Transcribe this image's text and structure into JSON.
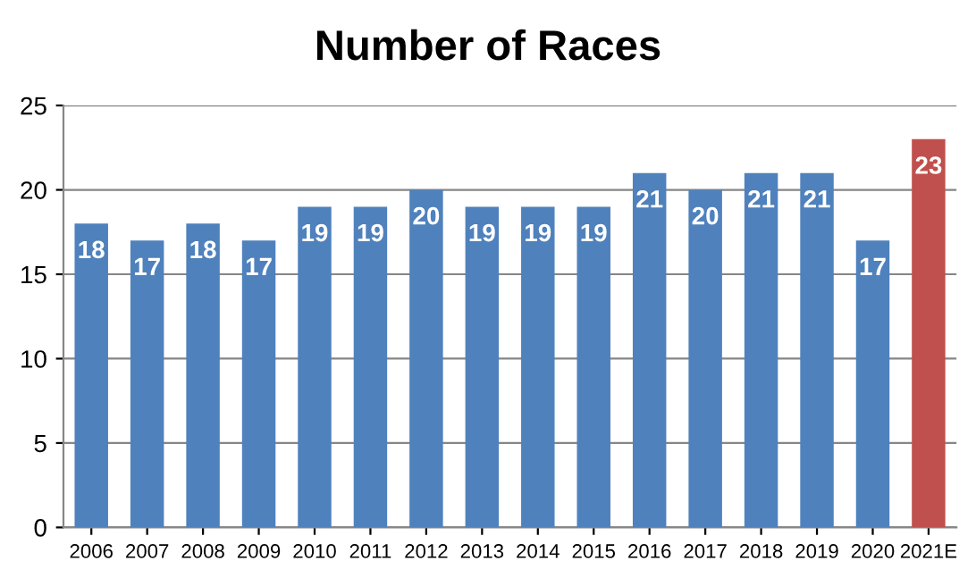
{
  "chart_data": {
    "type": "bar",
    "title": "Number of Races",
    "categories": [
      "2006",
      "2007",
      "2008",
      "2009",
      "2010",
      "2011",
      "2012",
      "2013",
      "2014",
      "2015",
      "2016",
      "2017",
      "2018",
      "2019",
      "2020",
      "2021E"
    ],
    "values": [
      18,
      17,
      18,
      17,
      19,
      19,
      20,
      19,
      19,
      19,
      21,
      20,
      21,
      21,
      17,
      23
    ],
    "colors": [
      "#4f81bd",
      "#4f81bd",
      "#4f81bd",
      "#4f81bd",
      "#4f81bd",
      "#4f81bd",
      "#4f81bd",
      "#4f81bd",
      "#4f81bd",
      "#4f81bd",
      "#4f81bd",
      "#4f81bd",
      "#4f81bd",
      "#4f81bd",
      "#4f81bd",
      "#c0504d"
    ],
    "ylim": [
      0,
      25
    ],
    "yticks": [
      0,
      5,
      10,
      15,
      20,
      25
    ],
    "grid": "y",
    "data_labels": true,
    "legend": false
  }
}
